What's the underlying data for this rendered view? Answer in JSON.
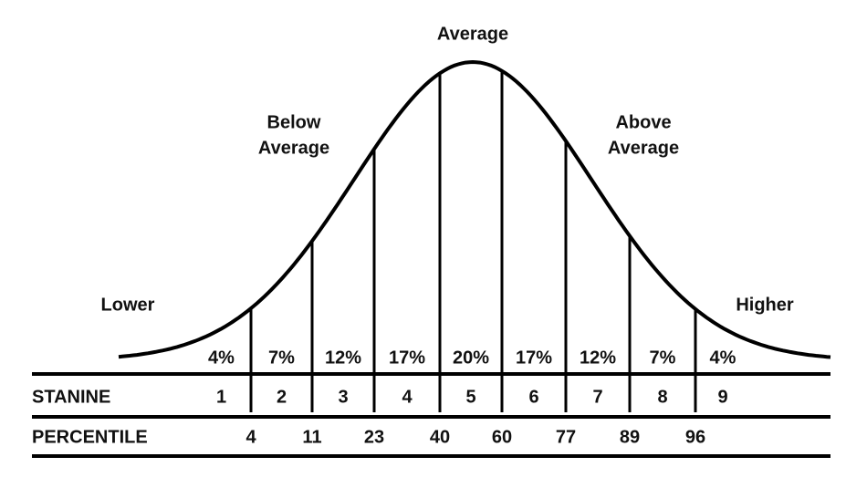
{
  "labels": {
    "average": "Average",
    "below_average": [
      "Below",
      "Average"
    ],
    "above_average": [
      "Above",
      "Average"
    ],
    "lower": "Lower",
    "higher": "Higher"
  },
  "percentages": [
    "4%",
    "7%",
    "12%",
    "17%",
    "20%",
    "17%",
    "12%",
    "7%",
    "4%"
  ],
  "stanine": {
    "label": "STANINE",
    "values": [
      "1",
      "2",
      "3",
      "4",
      "5",
      "6",
      "7",
      "8",
      "9"
    ]
  },
  "percentile": {
    "label": "PERCENTILE",
    "values": [
      "4",
      "11",
      "23",
      "40",
      "60",
      "77",
      "89",
      "96"
    ]
  }
}
